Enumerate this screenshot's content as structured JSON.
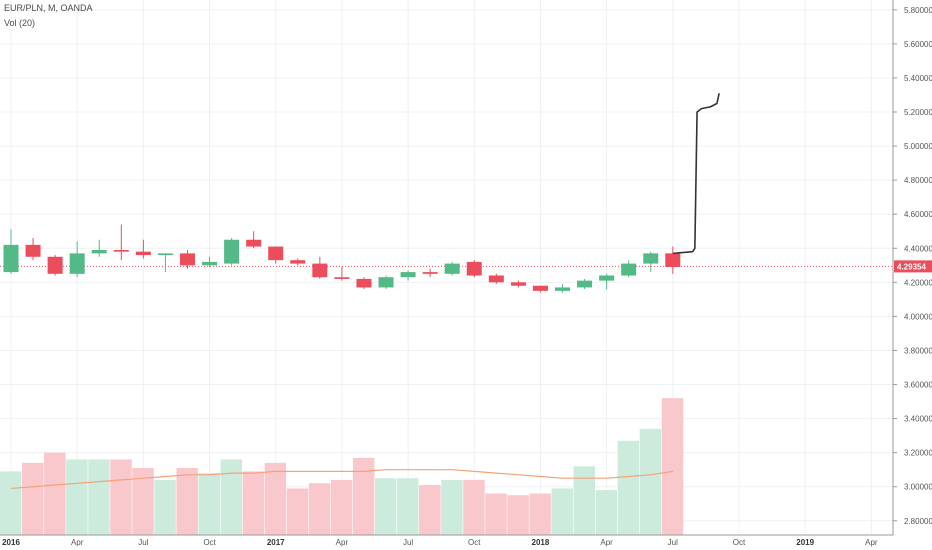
{
  "header": {
    "symbol_line": "EUR/PLN, M, OANDA",
    "volume_line": "Vol (20)"
  },
  "colors": {
    "up": "#53b987",
    "down": "#eb4d5c",
    "up_volume": "#cdebdd",
    "down_volume": "#f8c8cc",
    "ma": "#f5a17a",
    "drawing": "#333333",
    "grid": "#eef0f3",
    "price_line": "#eb4d5c"
  },
  "chart_data": {
    "type": "candlestick",
    "title": "EUR/PLN, M, OANDA",
    "x_tick_labels": [
      {
        "label": "2016",
        "index": 0,
        "bold": true
      },
      {
        "label": "Apr",
        "index": 3
      },
      {
        "label": "Jul",
        "index": 6
      },
      {
        "label": "Oct",
        "index": 9
      },
      {
        "label": "2017",
        "index": 12,
        "bold": true
      },
      {
        "label": "Apr",
        "index": 15
      },
      {
        "label": "Jul",
        "index": 18
      },
      {
        "label": "Oct",
        "index": 21
      },
      {
        "label": "2018",
        "index": 24,
        "bold": true
      },
      {
        "label": "Apr",
        "index": 27
      },
      {
        "label": "Jul",
        "index": 30
      },
      {
        "label": "Oct",
        "index": 33
      },
      {
        "label": "2019",
        "index": 36,
        "bold": true
      },
      {
        "label": "Apr",
        "index": 39
      }
    ],
    "y_axis": {
      "ticks": [
        "5.80000",
        "5.60000",
        "5.40000",
        "5.20000",
        "5.00000",
        "4.80000",
        "4.60000",
        "4.40000",
        "4.20000",
        "4.00000",
        "3.80000",
        "3.60000",
        "3.40000",
        "3.20000",
        "3.00000",
        "2.80000"
      ],
      "range": [
        2.74,
        5.84
      ]
    },
    "last_price": {
      "value": 4.29354,
      "label": "4.29354"
    },
    "candles": [
      {
        "o": 4.26,
        "h": 4.51,
        "l": 4.25,
        "c": 4.42
      },
      {
        "o": 4.42,
        "h": 4.46,
        "l": 4.33,
        "c": 4.35
      },
      {
        "o": 4.35,
        "h": 4.36,
        "l": 4.24,
        "c": 4.25
      },
      {
        "o": 4.25,
        "h": 4.44,
        "l": 4.23,
        "c": 4.37
      },
      {
        "o": 4.37,
        "h": 4.45,
        "l": 4.35,
        "c": 4.39
      },
      {
        "o": 4.39,
        "h": 4.54,
        "l": 4.33,
        "c": 4.38
      },
      {
        "o": 4.38,
        "h": 4.45,
        "l": 4.34,
        "c": 4.36
      },
      {
        "o": 4.36,
        "h": 4.37,
        "l": 4.26,
        "c": 4.37
      },
      {
        "o": 4.37,
        "h": 4.39,
        "l": 4.28,
        "c": 4.3
      },
      {
        "o": 4.3,
        "h": 4.35,
        "l": 4.29,
        "c": 4.32
      },
      {
        "o": 4.31,
        "h": 4.46,
        "l": 4.3,
        "c": 4.45
      },
      {
        "o": 4.45,
        "h": 4.5,
        "l": 4.4,
        "c": 4.41
      },
      {
        "o": 4.41,
        "h": 4.41,
        "l": 4.31,
        "c": 4.33
      },
      {
        "o": 4.33,
        "h": 4.34,
        "l": 4.3,
        "c": 4.31
      },
      {
        "o": 4.31,
        "h": 4.35,
        "l": 4.22,
        "c": 4.23
      },
      {
        "o": 4.23,
        "h": 4.29,
        "l": 4.21,
        "c": 4.22
      },
      {
        "o": 4.22,
        "h": 4.23,
        "l": 4.16,
        "c": 4.17
      },
      {
        "o": 4.17,
        "h": 4.24,
        "l": 4.16,
        "c": 4.23
      },
      {
        "o": 4.23,
        "h": 4.27,
        "l": 4.21,
        "c": 4.26
      },
      {
        "o": 4.26,
        "h": 4.28,
        "l": 4.23,
        "c": 4.25
      },
      {
        "o": 4.25,
        "h": 4.32,
        "l": 4.24,
        "c": 4.31
      },
      {
        "o": 4.32,
        "h": 4.33,
        "l": 4.23,
        "c": 4.24
      },
      {
        "o": 4.24,
        "h": 4.25,
        "l": 4.19,
        "c": 4.2
      },
      {
        "o": 4.2,
        "h": 4.21,
        "l": 4.17,
        "c": 4.18
      },
      {
        "o": 4.18,
        "h": 4.18,
        "l": 4.14,
        "c": 4.15
      },
      {
        "o": 4.15,
        "h": 4.19,
        "l": 4.14,
        "c": 4.17
      },
      {
        "o": 4.17,
        "h": 4.22,
        "l": 4.16,
        "c": 4.21
      },
      {
        "o": 4.21,
        "h": 4.25,
        "l": 4.16,
        "c": 4.24
      },
      {
        "o": 4.24,
        "h": 4.33,
        "l": 4.23,
        "c": 4.31
      },
      {
        "o": 4.31,
        "h": 4.38,
        "l": 4.26,
        "c": 4.37
      },
      {
        "o": 4.37,
        "h": 4.41,
        "l": 4.25,
        "c": 4.29
      }
    ],
    "volume_y_ticks": [
      "3.60000",
      "3.40000",
      "3.20000",
      "3.00000",
      "2.80000"
    ],
    "volume": [
      3.09,
      3.14,
      3.2,
      3.16,
      3.16,
      3.16,
      3.11,
      3.04,
      3.11,
      3.08,
      3.16,
      3.09,
      3.14,
      2.99,
      3.02,
      3.04,
      3.17,
      3.05,
      3.05,
      3.01,
      3.04,
      3.04,
      2.96,
      2.95,
      2.96,
      2.99,
      3.12,
      2.98,
      3.27,
      3.34,
      3.52
    ],
    "ma20": [
      2.99,
      3.0,
      3.01,
      3.02,
      3.03,
      3.04,
      3.05,
      3.06,
      3.07,
      3.07,
      3.08,
      3.08,
      3.09,
      3.09,
      3.09,
      3.09,
      3.09,
      3.1,
      3.1,
      3.1,
      3.1,
      3.09,
      3.08,
      3.07,
      3.06,
      3.05,
      3.05,
      3.05,
      3.06,
      3.07,
      3.09
    ],
    "drawing_path": [
      {
        "i": 30.0,
        "v": 4.37
      },
      {
        "i": 30.9,
        "v": 4.38
      },
      {
        "i": 31.0,
        "v": 4.4
      },
      {
        "i": 31.1,
        "v": 5.2
      },
      {
        "i": 31.3,
        "v": 5.22
      },
      {
        "i": 31.7,
        "v": 5.23
      },
      {
        "i": 32.0,
        "v": 5.25
      },
      {
        "i": 32.1,
        "v": 5.31
      }
    ]
  }
}
